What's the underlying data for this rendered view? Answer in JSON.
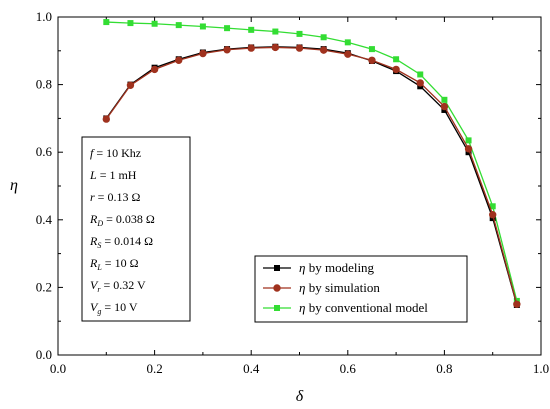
{
  "chart_data": {
    "type": "line",
    "xlabel": "δ",
    "ylabel": "η",
    "xlim": [
      0.0,
      1.0
    ],
    "ylim": [
      0.0,
      1.0
    ],
    "x_ticks": [
      "0.0",
      "0.2",
      "0.4",
      "0.6",
      "0.8",
      "1.0"
    ],
    "y_ticks": [
      "0.0",
      "0.2",
      "0.4",
      "0.6",
      "0.8",
      "1.0"
    ],
    "x_tick_values": [
      0.0,
      0.2,
      0.4,
      0.6,
      0.8,
      1.0
    ],
    "y_tick_values": [
      0.0,
      0.2,
      0.4,
      0.6,
      0.8,
      1.0
    ],
    "grid": false,
    "legend_position": "bottom-right",
    "x": [
      0.1,
      0.15,
      0.2,
      0.25,
      0.3,
      0.35,
      0.4,
      0.45,
      0.5,
      0.55,
      0.6,
      0.65,
      0.7,
      0.75,
      0.8,
      0.85,
      0.9,
      0.95
    ],
    "series": [
      {
        "name": "η by modeling",
        "color": "#000000",
        "marker": "square",
        "values": [
          0.7,
          0.8,
          0.85,
          0.875,
          0.895,
          0.905,
          0.91,
          0.912,
          0.91,
          0.905,
          0.893,
          0.87,
          0.84,
          0.795,
          0.725,
          0.6,
          0.405,
          0.148
        ]
      },
      {
        "name": "η by simulation",
        "color": "#a0321e",
        "marker": "circle",
        "values": [
          0.698,
          0.798,
          0.845,
          0.872,
          0.892,
          0.903,
          0.908,
          0.91,
          0.908,
          0.902,
          0.89,
          0.872,
          0.845,
          0.805,
          0.735,
          0.61,
          0.415,
          0.15
        ]
      },
      {
        "name": "η by conventional model",
        "color": "#33dd33",
        "marker": "square",
        "values": [
          0.985,
          0.982,
          0.98,
          0.976,
          0.972,
          0.967,
          0.962,
          0.957,
          0.95,
          0.94,
          0.925,
          0.905,
          0.875,
          0.83,
          0.755,
          0.635,
          0.44,
          0.16
        ]
      }
    ],
    "params": [
      "f = 10 Khz",
      "L = 1 mH",
      "r = 0.13 Ω",
      "RD = 0.038 Ω",
      "RS = 0.014 Ω",
      "RL = 10 Ω",
      "Vr = 0.32 V",
      "Vg = 10 V"
    ]
  }
}
